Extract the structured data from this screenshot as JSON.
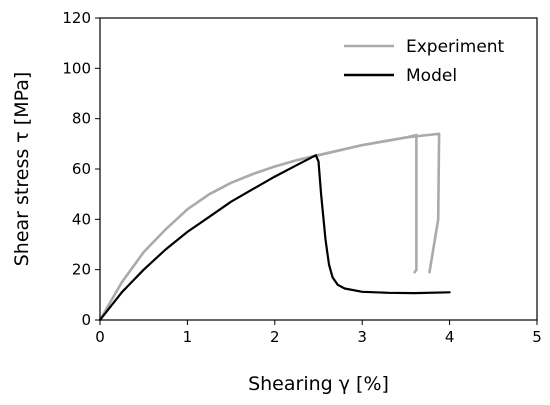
{
  "chart_data": {
    "type": "line",
    "xlabel": "Shearing γ [%]",
    "ylabel": "Shear stress τ [MPa]",
    "xlim": [
      0,
      5
    ],
    "ylim": [
      0,
      120
    ],
    "xticks": [
      0,
      1,
      2,
      3,
      4,
      5
    ],
    "yticks": [
      0,
      20,
      40,
      60,
      80,
      100,
      120
    ],
    "grid": false,
    "legend": {
      "placement": "top-right",
      "entries": [
        "Experiment",
        "Model"
      ]
    },
    "series": [
      {
        "name": "Experiment",
        "color": "#aaaaaa",
        "x": [
          0,
          0.25,
          0.5,
          0.75,
          1.0,
          1.25,
          1.5,
          1.75,
          2.0,
          2.25,
          2.5,
          2.75,
          3.0,
          3.25,
          3.5,
          3.62,
          3.62,
          3.6
        ],
        "y": [
          0,
          15,
          27,
          36,
          44,
          50,
          54.5,
          58,
          61,
          63.5,
          65.5,
          67.5,
          69.5,
          71,
          72.5,
          73.5,
          20,
          19
        ]
      },
      {
        "name": "Experiment",
        "color": "#aaaaaa",
        "x": [
          2.5,
          2.75,
          3.0,
          3.25,
          3.5,
          3.75,
          3.88,
          3.87,
          3.77
        ],
        "y": [
          65.5,
          67.5,
          69.5,
          71,
          72.5,
          73.5,
          74,
          40,
          19
        ]
      },
      {
        "name": "Model",
        "color": "#000000",
        "x": [
          0,
          0.25,
          0.5,
          0.75,
          1.0,
          1.25,
          1.5,
          1.75,
          2.0,
          2.25,
          2.47,
          2.5,
          2.53,
          2.58,
          2.62,
          2.66,
          2.72,
          2.8,
          3.0,
          3.3,
          3.6,
          4.0
        ],
        "y": [
          0,
          11,
          20,
          28,
          35,
          41,
          47,
          52,
          57,
          61.5,
          65.5,
          63,
          50,
          32,
          22,
          17,
          14,
          12.5,
          11.2,
          10.8,
          10.7,
          11
        ]
      }
    ]
  }
}
